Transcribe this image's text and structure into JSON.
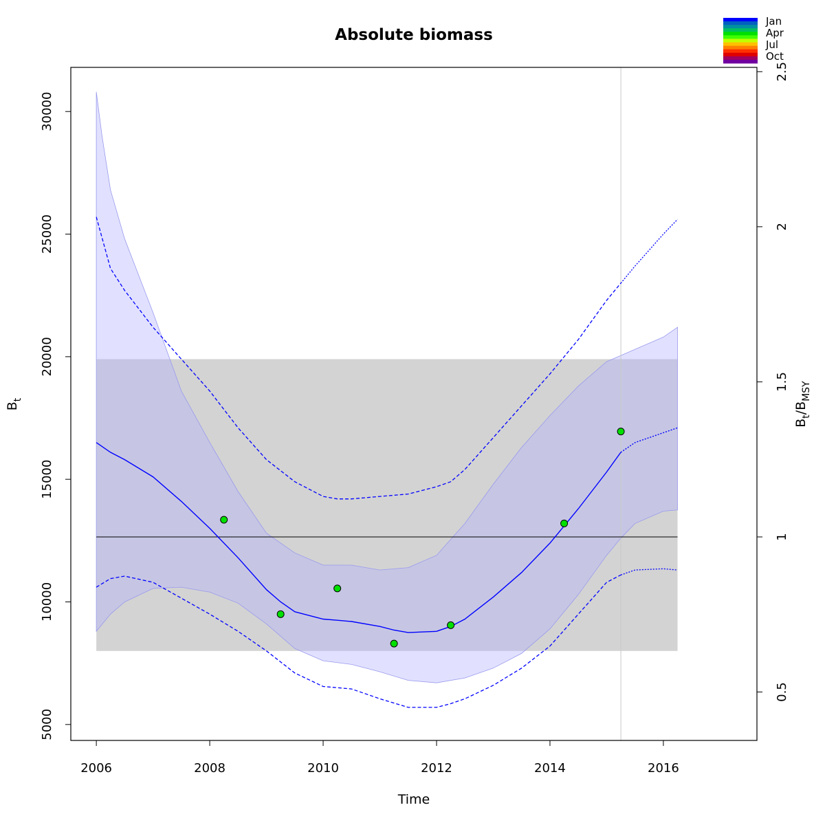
{
  "chart_data": {
    "type": "line",
    "title": "Absolute biomass",
    "xlabel": "Time",
    "ylabel": "B",
    "ylabel_sub": "t",
    "y2label_parts": [
      {
        "text": "B",
        "sub": false
      },
      {
        "text": "t",
        "sub": true
      },
      {
        "text": "/B",
        "sub": false
      },
      {
        "text": "MSY",
        "sub": true
      }
    ],
    "xlim": [
      2005.55,
      2017.65
    ],
    "ylim": [
      4350,
      31800
    ],
    "xticks": [
      2006,
      2008,
      2010,
      2012,
      2014,
      2016
    ],
    "xtick_labels": [
      "2006",
      "2008",
      "2010",
      "2012",
      "2014",
      "2016"
    ],
    "yticks": [
      5000,
      10000,
      15000,
      20000,
      25000,
      30000
    ],
    "ytick_labels": [
      "5000",
      "10000",
      "15000",
      "20000",
      "25000",
      "30000"
    ],
    "bmsy": 12650,
    "y2ticks": [
      0.5,
      1,
      1.5,
      2,
      2.5
    ],
    "y2tick_labels": [
      "0.5",
      "1",
      "1.5",
      "2",
      "2.5"
    ],
    "bmsy_band": {
      "x": [
        2006,
        2016.25
      ],
      "y": [
        8000,
        19900
      ]
    },
    "vline_x": 2015.25,
    "estimate_end": 2015.25,
    "series": [
      {
        "role": "median",
        "x": [
          2006,
          2006.25,
          2006.5,
          2007,
          2007.5,
          2008,
          2008.5,
          2009,
          2009.25,
          2009.5,
          2010,
          2010.25,
          2010.5,
          2011,
          2011.25,
          2011.5,
          2012,
          2012.25,
          2012.5,
          2013,
          2013.5,
          2014,
          2014.5,
          2015,
          2015.25,
          2015.5,
          2016,
          2016.25
        ],
        "y": [
          16500,
          16100,
          15800,
          15100,
          14100,
          13000,
          11800,
          10500,
          10000,
          9600,
          9300,
          9250,
          9200,
          9000,
          8850,
          8750,
          8800,
          9000,
          9300,
          10200,
          11200,
          12400,
          13800,
          15300,
          16100,
          16500,
          16900,
          17100
        ]
      },
      {
        "role": "ci_upper",
        "x": [
          2006,
          2006.25,
          2006.5,
          2007,
          2007.5,
          2008,
          2008.5,
          2009,
          2009.5,
          2010,
          2010.25,
          2010.5,
          2011,
          2011.5,
          2012,
          2012.25,
          2012.5,
          2013,
          2013.5,
          2014,
          2014.5,
          2015,
          2015.25,
          2015.5,
          2016,
          2016.25
        ],
        "y": [
          25700,
          23600,
          22700,
          21200,
          19900,
          18600,
          17100,
          15800,
          14900,
          14300,
          14200,
          14200,
          14300,
          14400,
          14700,
          14900,
          15400,
          16700,
          18000,
          19300,
          20700,
          22300,
          23000,
          23700,
          25000,
          25600
        ]
      },
      {
        "role": "ci_lower",
        "x": [
          2006,
          2006.25,
          2006.5,
          2007,
          2007.5,
          2008,
          2008.5,
          2009,
          2009.5,
          2010,
          2010.25,
          2010.5,
          2011,
          2011.5,
          2012,
          2012.25,
          2012.5,
          2013,
          2013.5,
          2014,
          2014.5,
          2015,
          2015.25,
          2015.5,
          2016,
          2016.25
        ],
        "y": [
          10600,
          10950,
          11050,
          10800,
          10150,
          9500,
          8800,
          8000,
          7100,
          6550,
          6500,
          6450,
          6050,
          5700,
          5700,
          5850,
          6050,
          6600,
          7300,
          8200,
          9500,
          10800,
          11100,
          11300,
          11350,
          11300
        ]
      },
      {
        "role": "band_upper",
        "x": [
          2006,
          2006.1,
          2006.25,
          2006.5,
          2007,
          2007.5,
          2008,
          2008.5,
          2009,
          2009.5,
          2010,
          2010.5,
          2011,
          2011.5,
          2012,
          2012.5,
          2013,
          2013.5,
          2014,
          2014.5,
          2015,
          2015.25,
          2015.5,
          2016,
          2016.25
        ],
        "y": [
          30800,
          29000,
          26800,
          24800,
          21800,
          18600,
          16500,
          14500,
          12800,
          12000,
          11500,
          11500,
          11300,
          11400,
          11900,
          13200,
          14800,
          16300,
          17600,
          18800,
          19800,
          20050,
          20300,
          20800,
          21200
        ]
      },
      {
        "role": "band_lower",
        "x": [
          2006,
          2006.25,
          2006.5,
          2007,
          2007.5,
          2008,
          2008.5,
          2009,
          2009.5,
          2010,
          2010.5,
          2011,
          2011.5,
          2012,
          2012.5,
          2013,
          2013.5,
          2014,
          2014.5,
          2015,
          2015.25,
          2015.5,
          2016,
          2016.25
        ],
        "y": [
          8800,
          9500,
          10000,
          10550,
          10600,
          10400,
          9950,
          9100,
          8100,
          7600,
          7450,
          7150,
          6800,
          6700,
          6900,
          7300,
          7900,
          8900,
          10300,
          11900,
          12600,
          13200,
          13700,
          13750
        ]
      }
    ],
    "points": {
      "x": [
        2008.25,
        2009.25,
        2010.25,
        2011.25,
        2012.25,
        2014.25,
        2015.25
      ],
      "y": [
        13350,
        9500,
        10550,
        8300,
        9050,
        13200,
        16950
      ]
    },
    "colors": {
      "line": "#0000ff",
      "band": "rgba(180,180,255,0.40)",
      "bmsy_band": "#d3d3d3",
      "point_fill": "#00e000",
      "vline": "#c8c8c8"
    },
    "legend": {
      "position": "top-right",
      "labels": [
        "Jan",
        "Apr",
        "Jul",
        "Oct"
      ],
      "colors": [
        "#0000ff",
        "#0060c0",
        "#0090a0",
        "#00c060",
        "#00e000",
        "#40ff00",
        "#c0ff00",
        "#ffc000",
        "#ff8000",
        "#ff3000",
        "#e00000",
        "#a00060",
        "#7000a0"
      ]
    }
  }
}
